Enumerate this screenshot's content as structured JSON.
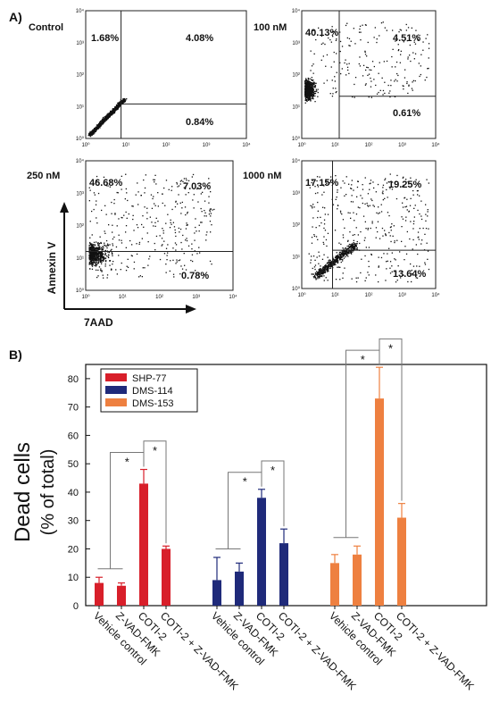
{
  "panel_a": {
    "label": "A)",
    "xlabel": "7AAD",
    "ylabel": "Annexin V",
    "tick_labels": [
      "10⁰",
      "10¹",
      "10²",
      "10³",
      "10⁴"
    ],
    "plots": [
      {
        "title": "Control",
        "q_upper_left": "1.68%",
        "q_upper_right": "4.08%",
        "q_lower_right": "0.84%"
      },
      {
        "title": "100 nM",
        "q_upper_left": "40.13%",
        "q_upper_right": "4.51%",
        "q_lower_right": "0.61%"
      },
      {
        "title": "250 nM",
        "q_upper_left": "46.68%",
        "q_upper_right": "7.03%",
        "q_lower_right": "0.78%"
      },
      {
        "title": "1000 nM",
        "q_upper_left": "17.15%",
        "q_upper_right": "19.25%",
        "q_lower_right": "13.64%"
      }
    ]
  },
  "panel_b": {
    "label": "B)",
    "sig_mark": "*"
  },
  "chart_data": {
    "type": "bar",
    "ylabel": "Dead cells",
    "ylabel2": "(% of total)",
    "ylim": [
      0,
      85
    ],
    "yticks": [
      "0",
      "10",
      "20",
      "30",
      "40",
      "50",
      "60",
      "70",
      "80"
    ],
    "categories": [
      "Vehicle control",
      "Z-VAD-FMK",
      "COTI-2",
      "COTI-2 + Z-VAD-FMK"
    ],
    "legend_position": "top-left",
    "series": [
      {
        "name": "SHP-77",
        "color": "#d81f2a",
        "values": [
          8,
          7,
          43,
          20
        ],
        "errors": [
          2,
          1,
          5,
          1
        ]
      },
      {
        "name": "DMS-114",
        "color": "#1f2a7a",
        "values": [
          9,
          12,
          38,
          22
        ],
        "errors": [
          8,
          3,
          3,
          5
        ]
      },
      {
        "name": "DMS-153",
        "color": "#ee8040",
        "values": [
          15,
          18,
          73,
          31
        ],
        "errors": [
          3,
          3,
          11,
          5
        ]
      }
    ]
  }
}
